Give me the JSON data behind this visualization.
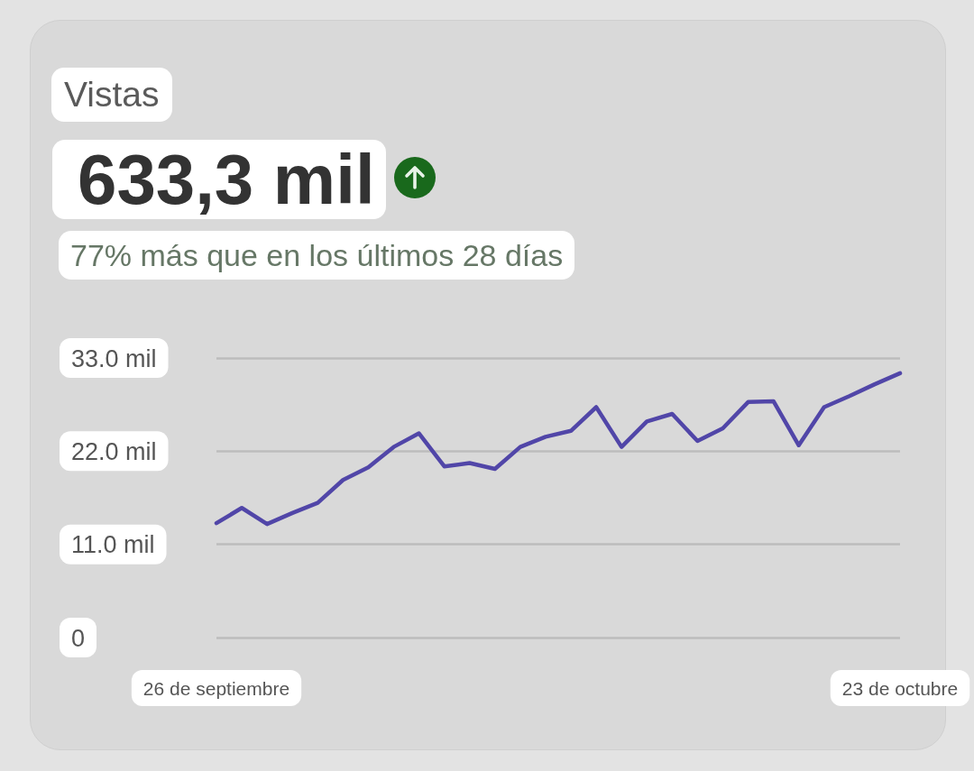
{
  "chart_data": {
    "type": "line",
    "title": "Vistas",
    "annotations": [
      "633,3 mil",
      "77% más que en los últimos 28 días"
    ],
    "categories": [
      "26 de septiembre",
      null,
      null,
      null,
      null,
      null,
      null,
      null,
      null,
      null,
      null,
      null,
      null,
      null,
      null,
      null,
      null,
      null,
      null,
      null,
      null,
      null,
      null,
      null,
      null,
      null,
      null,
      "23 de octubre"
    ],
    "series": [
      {
        "color": "#5146a8",
        "values": [
          13.5,
          15.3,
          13.4,
          14.7,
          15.9,
          18.6,
          20.1,
          22.5,
          24.1,
          20.2,
          20.6,
          19.9,
          22.5,
          23.7,
          24.4,
          27.2,
          22.5,
          25.5,
          26.4,
          23.2,
          24.7,
          27.8,
          27.9,
          22.7,
          27.2,
          28.5,
          29.9,
          31.2
        ]
      }
    ],
    "ylim": [
      0,
      33
    ],
    "yticks": [
      0,
      {
        "value": 11,
        "label": "11.0 mil"
      },
      {
        "value": 22,
        "label": "22.0 mil"
      },
      {
        "value": 33,
        "label": "33.0 mil"
      }
    ],
    "grid": "y",
    "marker": "none",
    "line_style": "solid"
  }
}
